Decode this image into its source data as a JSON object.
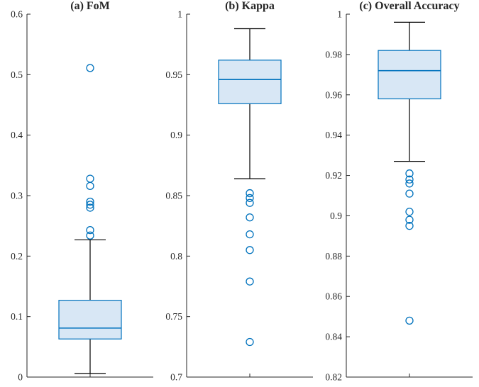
{
  "figure": {
    "background": "#ffffff"
  },
  "colors": {
    "box_edge": "#0072BD",
    "box_fill": "#D8E7F5",
    "median": "#0072BD",
    "whisker": "#000000",
    "cap": "#000000",
    "outlier": "#0072BD",
    "axis": "#262626",
    "tick_text": "#262626"
  },
  "chart_data": [
    {
      "type": "boxplot",
      "title": "(a) FoM",
      "xlabel": "",
      "ylabel": "",
      "ylim": [
        0,
        0.6
      ],
      "ytick_values": [
        0,
        0.1,
        0.2,
        0.3,
        0.4,
        0.5,
        0.6
      ],
      "ytick_labels": [
        "0",
        "0.1",
        "0.2",
        "0.3",
        "0.4",
        "0.5",
        "0.6"
      ],
      "box": {
        "whisker_low": 0.006,
        "q1": 0.063,
        "median": 0.081,
        "q3": 0.127,
        "whisker_high": 0.227
      },
      "outliers": [
        0.234,
        0.243,
        0.28,
        0.285,
        0.29,
        0.316,
        0.328,
        0.511
      ]
    },
    {
      "type": "boxplot",
      "title": "(b) Kappa",
      "xlabel": "",
      "ylabel": "",
      "ylim": [
        0.7,
        1
      ],
      "ytick_values": [
        0.7,
        0.75,
        0.8,
        0.85,
        0.9,
        0.95,
        1
      ],
      "ytick_labels": [
        "0.7",
        "0.75",
        "0.8",
        "0.85",
        "0.9",
        "0.95",
        "1"
      ],
      "box": {
        "whisker_low": 0.864,
        "q1": 0.926,
        "median": 0.946,
        "q3": 0.962,
        "whisker_high": 0.988
      },
      "outliers": [
        0.729,
        0.779,
        0.805,
        0.818,
        0.832,
        0.844,
        0.848,
        0.852
      ]
    },
    {
      "type": "boxplot",
      "title": "(c) Overall Accuracy",
      "xlabel": "",
      "ylabel": "",
      "ylim": [
        0.82,
        1
      ],
      "ytick_values": [
        0.82,
        0.84,
        0.86,
        0.88,
        0.9,
        0.92,
        0.94,
        0.96,
        0.98,
        1
      ],
      "ytick_labels": [
        "0.82",
        "0.84",
        "0.86",
        "0.88",
        "0.9",
        "0.92",
        "0.94",
        "0.96",
        "0.98",
        "1"
      ],
      "box": {
        "whisker_low": 0.927,
        "q1": 0.958,
        "median": 0.972,
        "q3": 0.982,
        "whisker_high": 0.996
      },
      "outliers": [
        0.848,
        0.895,
        0.898,
        0.902,
        0.911,
        0.916,
        0.918,
        0.921
      ]
    }
  ]
}
